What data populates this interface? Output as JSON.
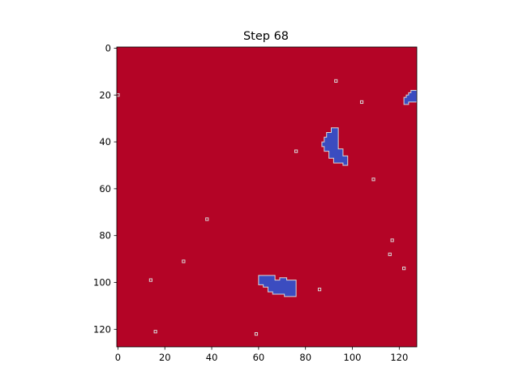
{
  "chart_data": {
    "type": "heatmap",
    "title": "Step 68",
    "xlabel": "",
    "ylabel": "",
    "grid_size": 128,
    "xlim": [
      -0.5,
      127.5
    ],
    "ylim": [
      127.5,
      -0.5
    ],
    "x_ticks": [
      0,
      20,
      40,
      60,
      80,
      100,
      120
    ],
    "y_ticks": [
      0,
      20,
      40,
      60,
      80,
      100,
      120
    ],
    "grid": false,
    "colormap": "coolwarm",
    "colors": {
      "background_state": "#b40426",
      "cluster_state": "#3b4cc0",
      "boundary": "#d9d9d9"
    },
    "blue_regions": [
      {
        "name": "cluster-top-right",
        "polygon": [
          [
            122,
            24
          ],
          [
            122,
            21
          ],
          [
            123,
            21
          ],
          [
            123,
            20
          ],
          [
            124,
            20
          ],
          [
            124,
            19
          ],
          [
            125,
            19
          ],
          [
            125,
            18
          ],
          [
            127.5,
            18
          ],
          [
            127.5,
            23
          ],
          [
            124,
            23
          ],
          [
            124,
            24
          ]
        ]
      },
      {
        "name": "cluster-center",
        "polygon": [
          [
            91,
            34
          ],
          [
            94,
            34
          ],
          [
            94,
            43
          ],
          [
            96,
            43
          ],
          [
            96,
            46
          ],
          [
            98,
            46
          ],
          [
            98,
            50
          ],
          [
            96,
            50
          ],
          [
            96,
            49
          ],
          [
            92,
            49
          ],
          [
            92,
            47
          ],
          [
            90,
            47
          ],
          [
            90,
            44
          ],
          [
            88,
            44
          ],
          [
            88,
            42
          ],
          [
            87,
            42
          ],
          [
            87,
            40
          ],
          [
            88,
            40
          ],
          [
            88,
            38
          ],
          [
            89,
            38
          ],
          [
            89,
            36
          ],
          [
            91,
            36
          ]
        ]
      },
      {
        "name": "cluster-bottom",
        "polygon": [
          [
            60,
            97
          ],
          [
            67,
            97
          ],
          [
            67,
            99
          ],
          [
            69,
            99
          ],
          [
            69,
            98
          ],
          [
            72,
            98
          ],
          [
            72,
            99
          ],
          [
            76,
            99
          ],
          [
            76,
            106
          ],
          [
            71,
            106
          ],
          [
            71,
            105
          ],
          [
            66,
            105
          ],
          [
            66,
            104
          ],
          [
            64,
            104
          ],
          [
            64,
            102
          ],
          [
            62,
            102
          ],
          [
            62,
            101
          ],
          [
            60,
            101
          ]
        ]
      }
    ],
    "isolated_points": [
      [
        0,
        20
      ],
      [
        93,
        14
      ],
      [
        104,
        23
      ],
      [
        76,
        44
      ],
      [
        109,
        56
      ],
      [
        38,
        73
      ],
      [
        117,
        82
      ],
      [
        116,
        88
      ],
      [
        28,
        91
      ],
      [
        122,
        94
      ],
      [
        14,
        99
      ],
      [
        86,
        103
      ],
      [
        16,
        121
      ],
      [
        59,
        122
      ]
    ]
  }
}
